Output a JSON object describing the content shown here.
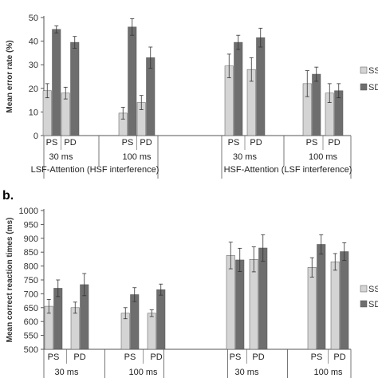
{
  "colors": {
    "ss": "#d4d4d4",
    "sd": "#6e6e6e",
    "axis": "#555555",
    "err": "#333333"
  },
  "chart_data": [
    {
      "panel_label": "",
      "type": "bar",
      "ylabel": "Mean error rate (%)",
      "ylim": [
        0,
        50
      ],
      "yticks": [
        0,
        10,
        20,
        30,
        40,
        50
      ],
      "grid": false,
      "legend": {
        "position": "right",
        "entries": [
          "SS",
          "SD"
        ]
      },
      "groups": [
        {
          "cat": "PS",
          "ss": 19,
          "ss_err": 3,
          "sd": 45,
          "sd_err": 1.5
        },
        {
          "cat": "PD",
          "ss": 18,
          "ss_err": 2.5,
          "sd": 39.5,
          "sd_err": 2.5
        },
        {
          "cat": "PS",
          "ss": 9.5,
          "ss_err": 2.5,
          "sd": 46,
          "sd_err": 3.5
        },
        {
          "cat": "PD",
          "ss": 14,
          "ss_err": 3,
          "sd": 33,
          "sd_err": 4.5
        },
        {
          "cat": "PS",
          "ss": 29.5,
          "ss_err": 5,
          "sd": 39.5,
          "sd_err": 3
        },
        {
          "cat": "PD",
          "ss": 28,
          "ss_err": 5,
          "sd": 41.5,
          "sd_err": 4
        },
        {
          "cat": "PS",
          "ss": 22,
          "ss_err": 5.5,
          "sd": 26,
          "sd_err": 3
        },
        {
          "cat": "PD",
          "ss": 18,
          "ss_err": 4,
          "sd": 19,
          "sd_err": 3
        }
      ],
      "durations": [
        "30 ms",
        "100 ms",
        "30 ms",
        "100 ms"
      ],
      "conditions": [
        "LSF-Attention (HSF interference)",
        "HSF-Attention (LSF interference)"
      ]
    },
    {
      "panel_label": "b.",
      "type": "bar",
      "ylabel": "Mean correct reaction times (ms)",
      "ylim": [
        500,
        1000
      ],
      "yticks": [
        500,
        550,
        600,
        650,
        700,
        750,
        800,
        850,
        900,
        950,
        1000
      ],
      "grid": false,
      "legend": {
        "position": "right",
        "entries": [
          "SS",
          "SD"
        ]
      },
      "groups": [
        {
          "cat": "PS",
          "ss": 655,
          "ss_err": 25,
          "sd": 720,
          "sd_err": 30
        },
        {
          "cat": "PD",
          "ss": 650,
          "ss_err": 20,
          "sd": 733,
          "sd_err": 40
        },
        {
          "cat": "PS",
          "ss": 630,
          "ss_err": 20,
          "sd": 697,
          "sd_err": 25
        },
        {
          "cat": "PD",
          "ss": 630,
          "ss_err": 12,
          "sd": 715,
          "sd_err": 20
        },
        {
          "cat": "PS",
          "ss": 838,
          "ss_err": 48,
          "sd": 822,
          "sd_err": 42
        },
        {
          "cat": "PD",
          "ss": 824,
          "ss_err": 45,
          "sd": 865,
          "sd_err": 48
        },
        {
          "cat": "PS",
          "ss": 795,
          "ss_err": 35,
          "sd": 878,
          "sd_err": 35
        },
        {
          "cat": "PD",
          "ss": 815,
          "ss_err": 30,
          "sd": 852,
          "sd_err": 32
        }
      ],
      "durations": [
        "30 ms",
        "100 ms",
        "30 ms",
        "100 ms"
      ],
      "conditions": []
    }
  ]
}
